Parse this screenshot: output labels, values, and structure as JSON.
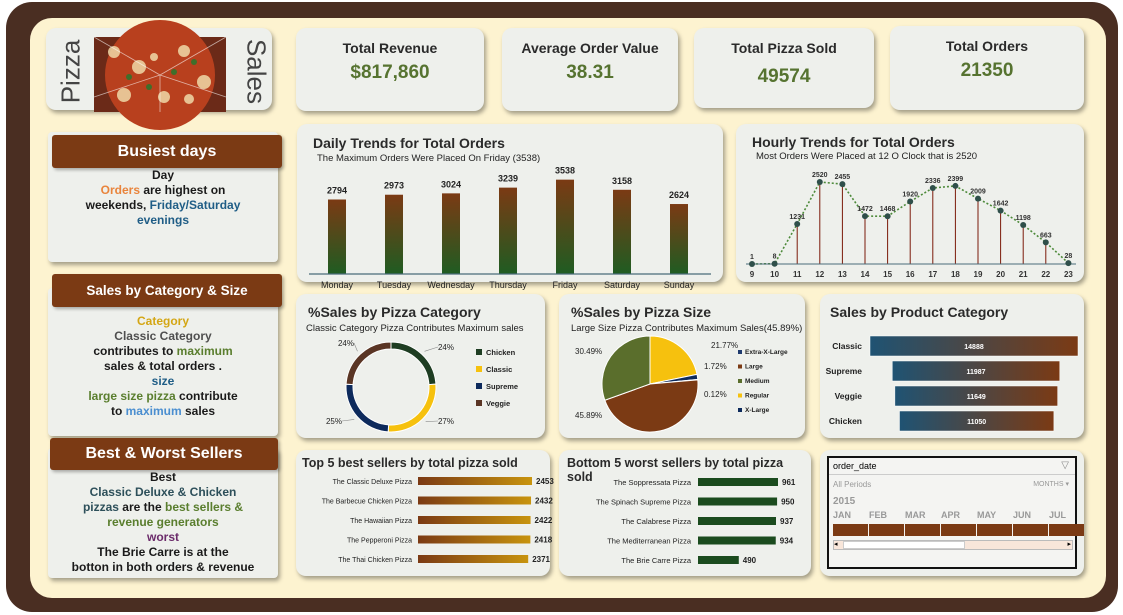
{
  "header": {
    "title_left": "Pizza",
    "title_right": "Sales"
  },
  "kpis": [
    {
      "label": "Total Revenue",
      "value": "$817,860"
    },
    {
      "label": "Average Order Value",
      "value": "38.31"
    },
    {
      "label": "Total Pizza Sold",
      "value": "49574"
    },
    {
      "label": "Total Orders",
      "value": "21350"
    }
  ],
  "busiest": {
    "banner": "Busiest days",
    "line1": "Day",
    "orders": "Orders",
    "mid": " are highest  on",
    "weekends": "weekends,",
    "fri": "Friday/Saturday",
    "evenings": "evenings"
  },
  "catsize": {
    "banner": "Sales by Category & Size",
    "category": "Category",
    "classic": "Classic Category",
    "contributes": "contributes to ",
    "maximum": "maximum",
    "sales_orders": "sales & total orders .",
    "size": "size",
    "large": "large size pizza",
    "contribute": "  contribute",
    "to": "to ",
    "maximum2": "maximum",
    "sales": " sales"
  },
  "bestworst": {
    "banner": "Best & Worst Sellers",
    "best": "Best",
    "names1": "Classic Deluxe & Chicken",
    "pizzas": "pizzas",
    "are_the": "  are the ",
    "best_sellers": "best sellers &",
    "revenue": "revenue generators",
    "worst": "worst",
    "brie1": "The Brie Carre is  at the",
    "brie2": "botton in both orders & revenue"
  },
  "colors": {
    "bar_top": "#7b3a14",
    "bar_bottom": "#1f5c22",
    "green": "#567330",
    "brown": "#7b3a14",
    "navy": "#0d2a5c",
    "gold": "#f6c10e"
  },
  "chart_data": [
    {
      "id": "daily",
      "type": "bar",
      "title": "Daily Trends for Total Orders",
      "subtitle": "The Maximum Orders Were Placed On Friday (3538)",
      "categories": [
        "Monday",
        "Tuesday",
        "Wednesday",
        "Thursday",
        "Friday",
        "Saturday",
        "Sunday"
      ],
      "values": [
        2794,
        2973,
        3024,
        3239,
        3538,
        3158,
        2624
      ]
    },
    {
      "id": "hourly",
      "type": "line",
      "title": "Hourly Trends for Total Orders",
      "subtitle": "Most Orders Were Placed at  12  O Clock  that is 2520",
      "x": [
        "9",
        "10",
        "11",
        "12",
        "13",
        "14",
        "15",
        "16",
        "17",
        "18",
        "19",
        "20",
        "21",
        "22",
        "23"
      ],
      "values": [
        1,
        8,
        1231,
        2520,
        2455,
        1472,
        1468,
        1920,
        2336,
        2399,
        2009,
        1642,
        1198,
        663,
        28
      ]
    },
    {
      "id": "category",
      "type": "pie",
      "title": "%Sales by Pizza Category",
      "subtitle": "Classic  Category Pizza Contributes Maximum sales",
      "labels": [
        "Chicken",
        "Classic",
        "Supreme",
        "Veggie"
      ],
      "values": [
        24,
        27,
        25,
        24
      ],
      "value_labels": [
        "24%",
        "27%",
        "25%",
        "24%"
      ],
      "colors": [
        "#1e3d22",
        "#f6c10e",
        "#0d2a5c",
        "#5a3524"
      ]
    },
    {
      "id": "size",
      "type": "pie",
      "title": "%Sales by Pizza Size",
      "subtitle": "Large  Size Pizza Contributes Maximum Sales(45.89%)",
      "labels": [
        "Extra-X-Large",
        "Large",
        "Medium",
        "Regular",
        "X-Large"
      ],
      "values": [
        0.12,
        45.89,
        30.49,
        21.77,
        1.72
      ],
      "value_labels": [
        "0.12%",
        "45.89%",
        "30.49%",
        "21.77%",
        "1.72%"
      ],
      "colors": [
        "#1e3a6e",
        "#7b3a14",
        "#5a6e2c",
        "#f6c10e",
        "#0d2a5c"
      ]
    },
    {
      "id": "product",
      "type": "bar",
      "title": "Sales by Product Category",
      "categories": [
        "Classic",
        "Supreme",
        "Veggie",
        "Chicken"
      ],
      "values": [
        14888,
        11987,
        11649,
        11050
      ]
    },
    {
      "id": "top5",
      "type": "bar",
      "title": "Top 5 best sellers by total pizza sold",
      "categories": [
        "The Classic Deluxe Pizza",
        "The Barbecue Chicken Pizza",
        "The Hawaiian Pizza",
        "The Pepperoni Pizza",
        "The Thai Chicken Pizza"
      ],
      "values": [
        2453,
        2432,
        2422,
        2418,
        2371
      ]
    },
    {
      "id": "bottom5",
      "type": "bar",
      "title": "Bottom 5 worst sellers by total pizza sold",
      "categories": [
        "The Soppressata Pizza",
        "The Spinach Supreme Pizza",
        "The Calabrese Pizza",
        "The Mediterranean Pizza",
        "The Brie Carre Pizza"
      ],
      "values": [
        961,
        950,
        937,
        934,
        490
      ]
    }
  ],
  "timeline": {
    "field": "order_date",
    "periods": "All Periods",
    "unit": "MONTHS",
    "year": "2015",
    "months": [
      "JAN",
      "FEB",
      "MAR",
      "APR",
      "MAY",
      "JUN",
      "JUL"
    ]
  }
}
